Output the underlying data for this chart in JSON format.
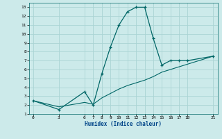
{
  "xlabel": "Humidex (Indice chaleur)",
  "bg_color": "#cceaea",
  "grid_color": "#aad4d4",
  "line_color": "#006666",
  "curve1_x": [
    0,
    3,
    6,
    7,
    8,
    9,
    10,
    11,
    12,
    13,
    14,
    15,
    16,
    17,
    18,
    21
  ],
  "curve1_y": [
    2.5,
    1.5,
    3.5,
    2.0,
    5.5,
    8.5,
    11.0,
    12.5,
    13.0,
    13.0,
    9.5,
    6.5,
    7.0,
    7.0,
    7.0,
    7.5
  ],
  "curve2_x": [
    0,
    3,
    6,
    7,
    8,
    9,
    10,
    11,
    12,
    13,
    14,
    15,
    16,
    17,
    18,
    21
  ],
  "curve2_y": [
    2.5,
    1.8,
    2.3,
    2.1,
    2.8,
    3.3,
    3.8,
    4.2,
    4.5,
    4.8,
    5.2,
    5.7,
    6.0,
    6.3,
    6.6,
    7.5
  ],
  "xlim": [
    -0.5,
    21.5
  ],
  "ylim": [
    1,
    13.5
  ],
  "xticks": [
    0,
    3,
    6,
    7,
    8,
    9,
    10,
    11,
    12,
    13,
    14,
    15,
    16,
    17,
    18,
    21
  ],
  "yticks": [
    1,
    2,
    3,
    4,
    5,
    6,
    7,
    8,
    9,
    10,
    11,
    12,
    13
  ]
}
